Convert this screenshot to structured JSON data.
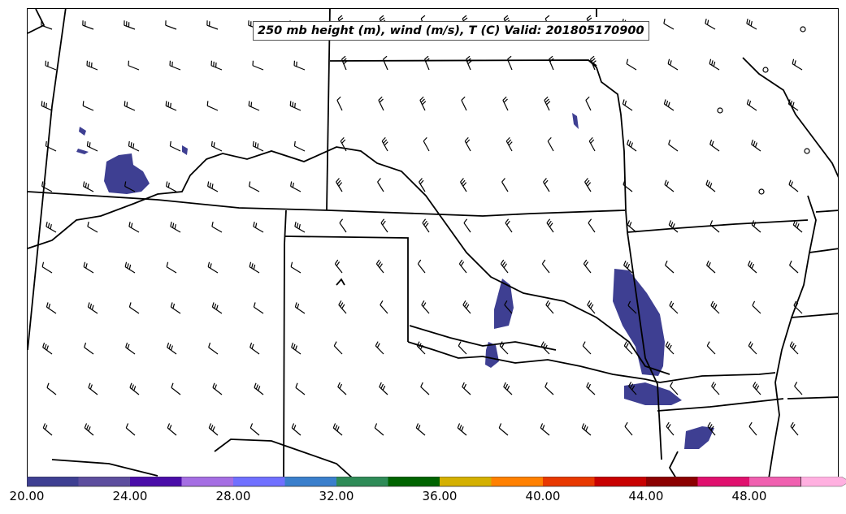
{
  "title": "250 mb height (m), wind (m/s), T (C) Valid: 201805170900",
  "colorbar": {
    "tick_labels": [
      "20.00",
      "24.00",
      "28.00",
      "32.00",
      "36.00",
      "40.00",
      "44.00",
      "48.00"
    ],
    "colors": [
      "#3e3f92",
      "#5d4e9e",
      "#4a0da8",
      "#a56ee3",
      "#7070ff",
      "#3a7fcc",
      "#2e8b57",
      "#006400",
      "#d4b000",
      "#ff8000",
      "#e83800",
      "#c80000",
      "#8b0000",
      "#e0106e",
      "#f060b0",
      "#ffb0e0"
    ]
  },
  "wind_barbs": {
    "note": "Wind barbs on a regular grid; direction in degrees wind-from, speed in m/s",
    "color": "#000000"
  },
  "temperature_fill_color": "#3e3f92",
  "state_boundary_color": "#000000"
}
